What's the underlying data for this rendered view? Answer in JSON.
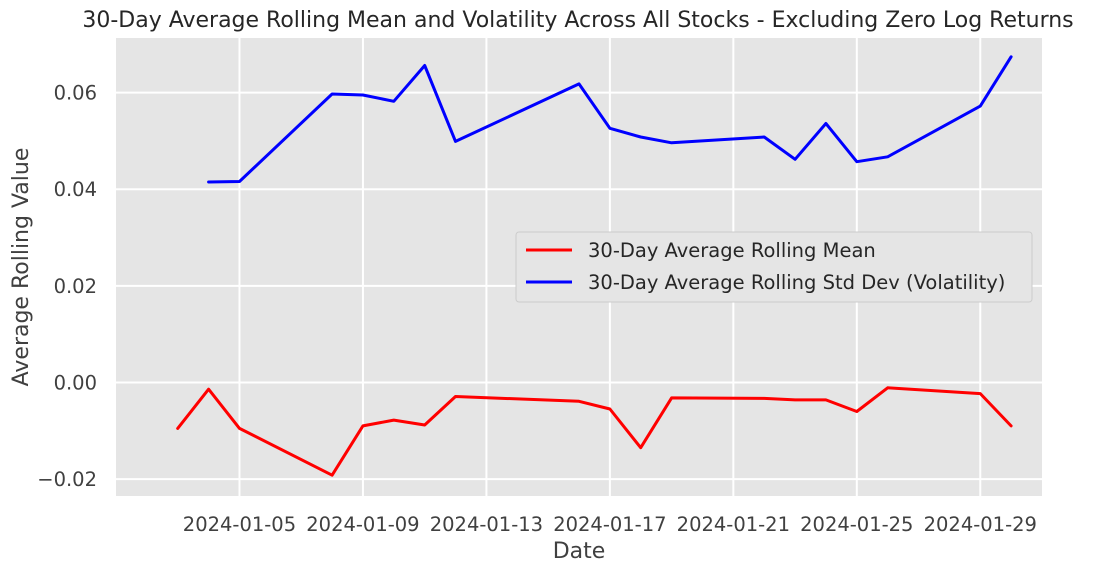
{
  "chart_data": {
    "type": "line",
    "title": "30-Day Average Rolling Mean and Volatility Across All Stocks - Excluding Zero Log Returns",
    "xlabel": "Date",
    "ylabel": "Average Rolling Value",
    "xlim": [
      "2024-01-01",
      "2024-01-31"
    ],
    "ylim": [
      -0.0235,
      0.0713
    ],
    "x_ticks": [
      "2024-01-05",
      "2024-01-09",
      "2024-01-13",
      "2024-01-17",
      "2024-01-21",
      "2024-01-25",
      "2024-01-29"
    ],
    "y_ticks": [
      -0.02,
      0.0,
      0.02,
      0.04,
      0.06
    ],
    "y_tick_labels": [
      "−0.02",
      "0.00",
      "0.02",
      "0.04",
      "0.06"
    ],
    "grid": true,
    "legend_position": "center-right",
    "series": [
      {
        "name": "30-Day Average Rolling Mean",
        "color": "#ff0000",
        "points": [
          [
            "2024-01-03",
            -0.0095
          ],
          [
            "2024-01-04",
            -0.0014
          ],
          [
            "2024-01-05",
            -0.0095
          ],
          [
            "2024-01-08",
            -0.0192
          ],
          [
            "2024-01-09",
            -0.009
          ],
          [
            "2024-01-10",
            -0.0078
          ],
          [
            "2024-01-11",
            -0.0088
          ],
          [
            "2024-01-12",
            -0.0029
          ],
          [
            "2024-01-16",
            -0.0039
          ],
          [
            "2024-01-17",
            -0.0055
          ],
          [
            "2024-01-18",
            -0.0135
          ],
          [
            "2024-01-19",
            -0.0032
          ],
          [
            "2024-01-22",
            -0.0033
          ],
          [
            "2024-01-23",
            -0.0036
          ],
          [
            "2024-01-24",
            -0.0036
          ],
          [
            "2024-01-25",
            -0.006
          ],
          [
            "2024-01-26",
            -0.0011
          ],
          [
            "2024-01-29",
            -0.0023
          ],
          [
            "2024-01-30",
            -0.009
          ]
        ]
      },
      {
        "name": "30-Day Average Rolling Std Dev (Volatility)",
        "color": "#0000ff",
        "points": [
          [
            "2024-01-04",
            0.0415
          ],
          [
            "2024-01-05",
            0.0416
          ],
          [
            "2024-01-08",
            0.0597
          ],
          [
            "2024-01-09",
            0.0595
          ],
          [
            "2024-01-10",
            0.0582
          ],
          [
            "2024-01-11",
            0.0656
          ],
          [
            "2024-01-12",
            0.0499
          ],
          [
            "2024-01-16",
            0.0618
          ],
          [
            "2024-01-17",
            0.0526
          ],
          [
            "2024-01-18",
            0.0508
          ],
          [
            "2024-01-19",
            0.0496
          ],
          [
            "2024-01-22",
            0.0508
          ],
          [
            "2024-01-23",
            0.0462
          ],
          [
            "2024-01-24",
            0.0536
          ],
          [
            "2024-01-25",
            0.0457
          ],
          [
            "2024-01-26",
            0.0467
          ],
          [
            "2024-01-29",
            0.0572
          ],
          [
            "2024-01-30",
            0.0674
          ]
        ]
      }
    ]
  }
}
